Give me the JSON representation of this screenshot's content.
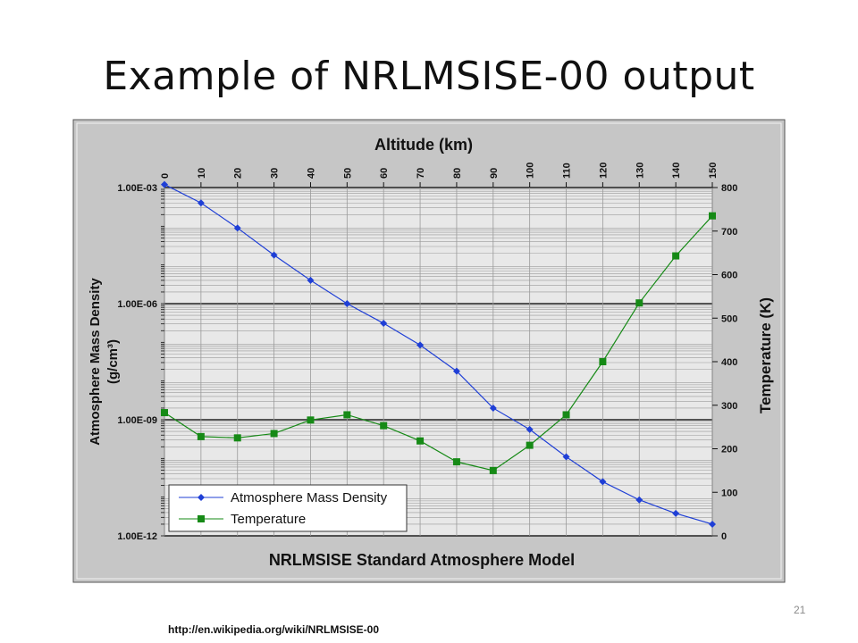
{
  "slide": {
    "title": "Example of NRLMSISE-00 output",
    "footer_url": "http://en.wikipedia.org/wiki/NRLMSISE-00",
    "page_number": "21"
  },
  "colors": {
    "density": "#1f3fd6",
    "temperature": "#168a16",
    "plot_bg": "#e8e8e8",
    "frame_bg": "#c6c6c6"
  },
  "chart_data": {
    "type": "line",
    "title": "NRLMSISE Standard Atmosphere Model",
    "xlabel": "Altitude (km)",
    "ylabel_left_line1": "Atmosphere Mass Density",
    "ylabel_left_line2": "(g/cm³)",
    "ylabel_right": "Temperature (K)",
    "x": [
      0,
      10,
      20,
      30,
      40,
      50,
      60,
      70,
      80,
      90,
      100,
      110,
      120,
      130,
      140,
      150
    ],
    "x_ticks": [
      "0",
      "10",
      "20",
      "30",
      "40",
      "50",
      "60",
      "70",
      "80",
      "90",
      "100",
      "110",
      "120",
      "130",
      "140",
      "150"
    ],
    "y_left_scale": "log",
    "y_left_ticks": [
      "1.00E-03",
      "1.00E-06",
      "1.00E-09",
      "1.00E-12"
    ],
    "ylim_left": [
      1e-12,
      0.001
    ],
    "y_right_ticks": [
      "0",
      "100",
      "200",
      "300",
      "400",
      "500",
      "600",
      "700",
      "800"
    ],
    "ylim_right": [
      0,
      800
    ],
    "grid": true,
    "legend_position": "bottom-left",
    "series": [
      {
        "name": "Atmosphere Mass Density",
        "axis": "left",
        "marker": "diamond",
        "values": [
          0.0012,
          0.0004,
          9e-05,
          1.8e-05,
          4e-06,
          1e-06,
          3.1e-07,
          8.5e-08,
          1.8e-08,
          2e-09,
          5.6e-10,
          1.1e-10,
          2.5e-11,
          8.5e-12,
          3.8e-12,
          2e-12
        ]
      },
      {
        "name": "Temperature",
        "axis": "right",
        "marker": "square",
        "values": [
          283,
          228,
          225,
          235,
          266,
          278,
          253,
          218,
          170,
          150,
          208,
          278,
          400,
          535,
          643,
          735
        ]
      }
    ]
  }
}
